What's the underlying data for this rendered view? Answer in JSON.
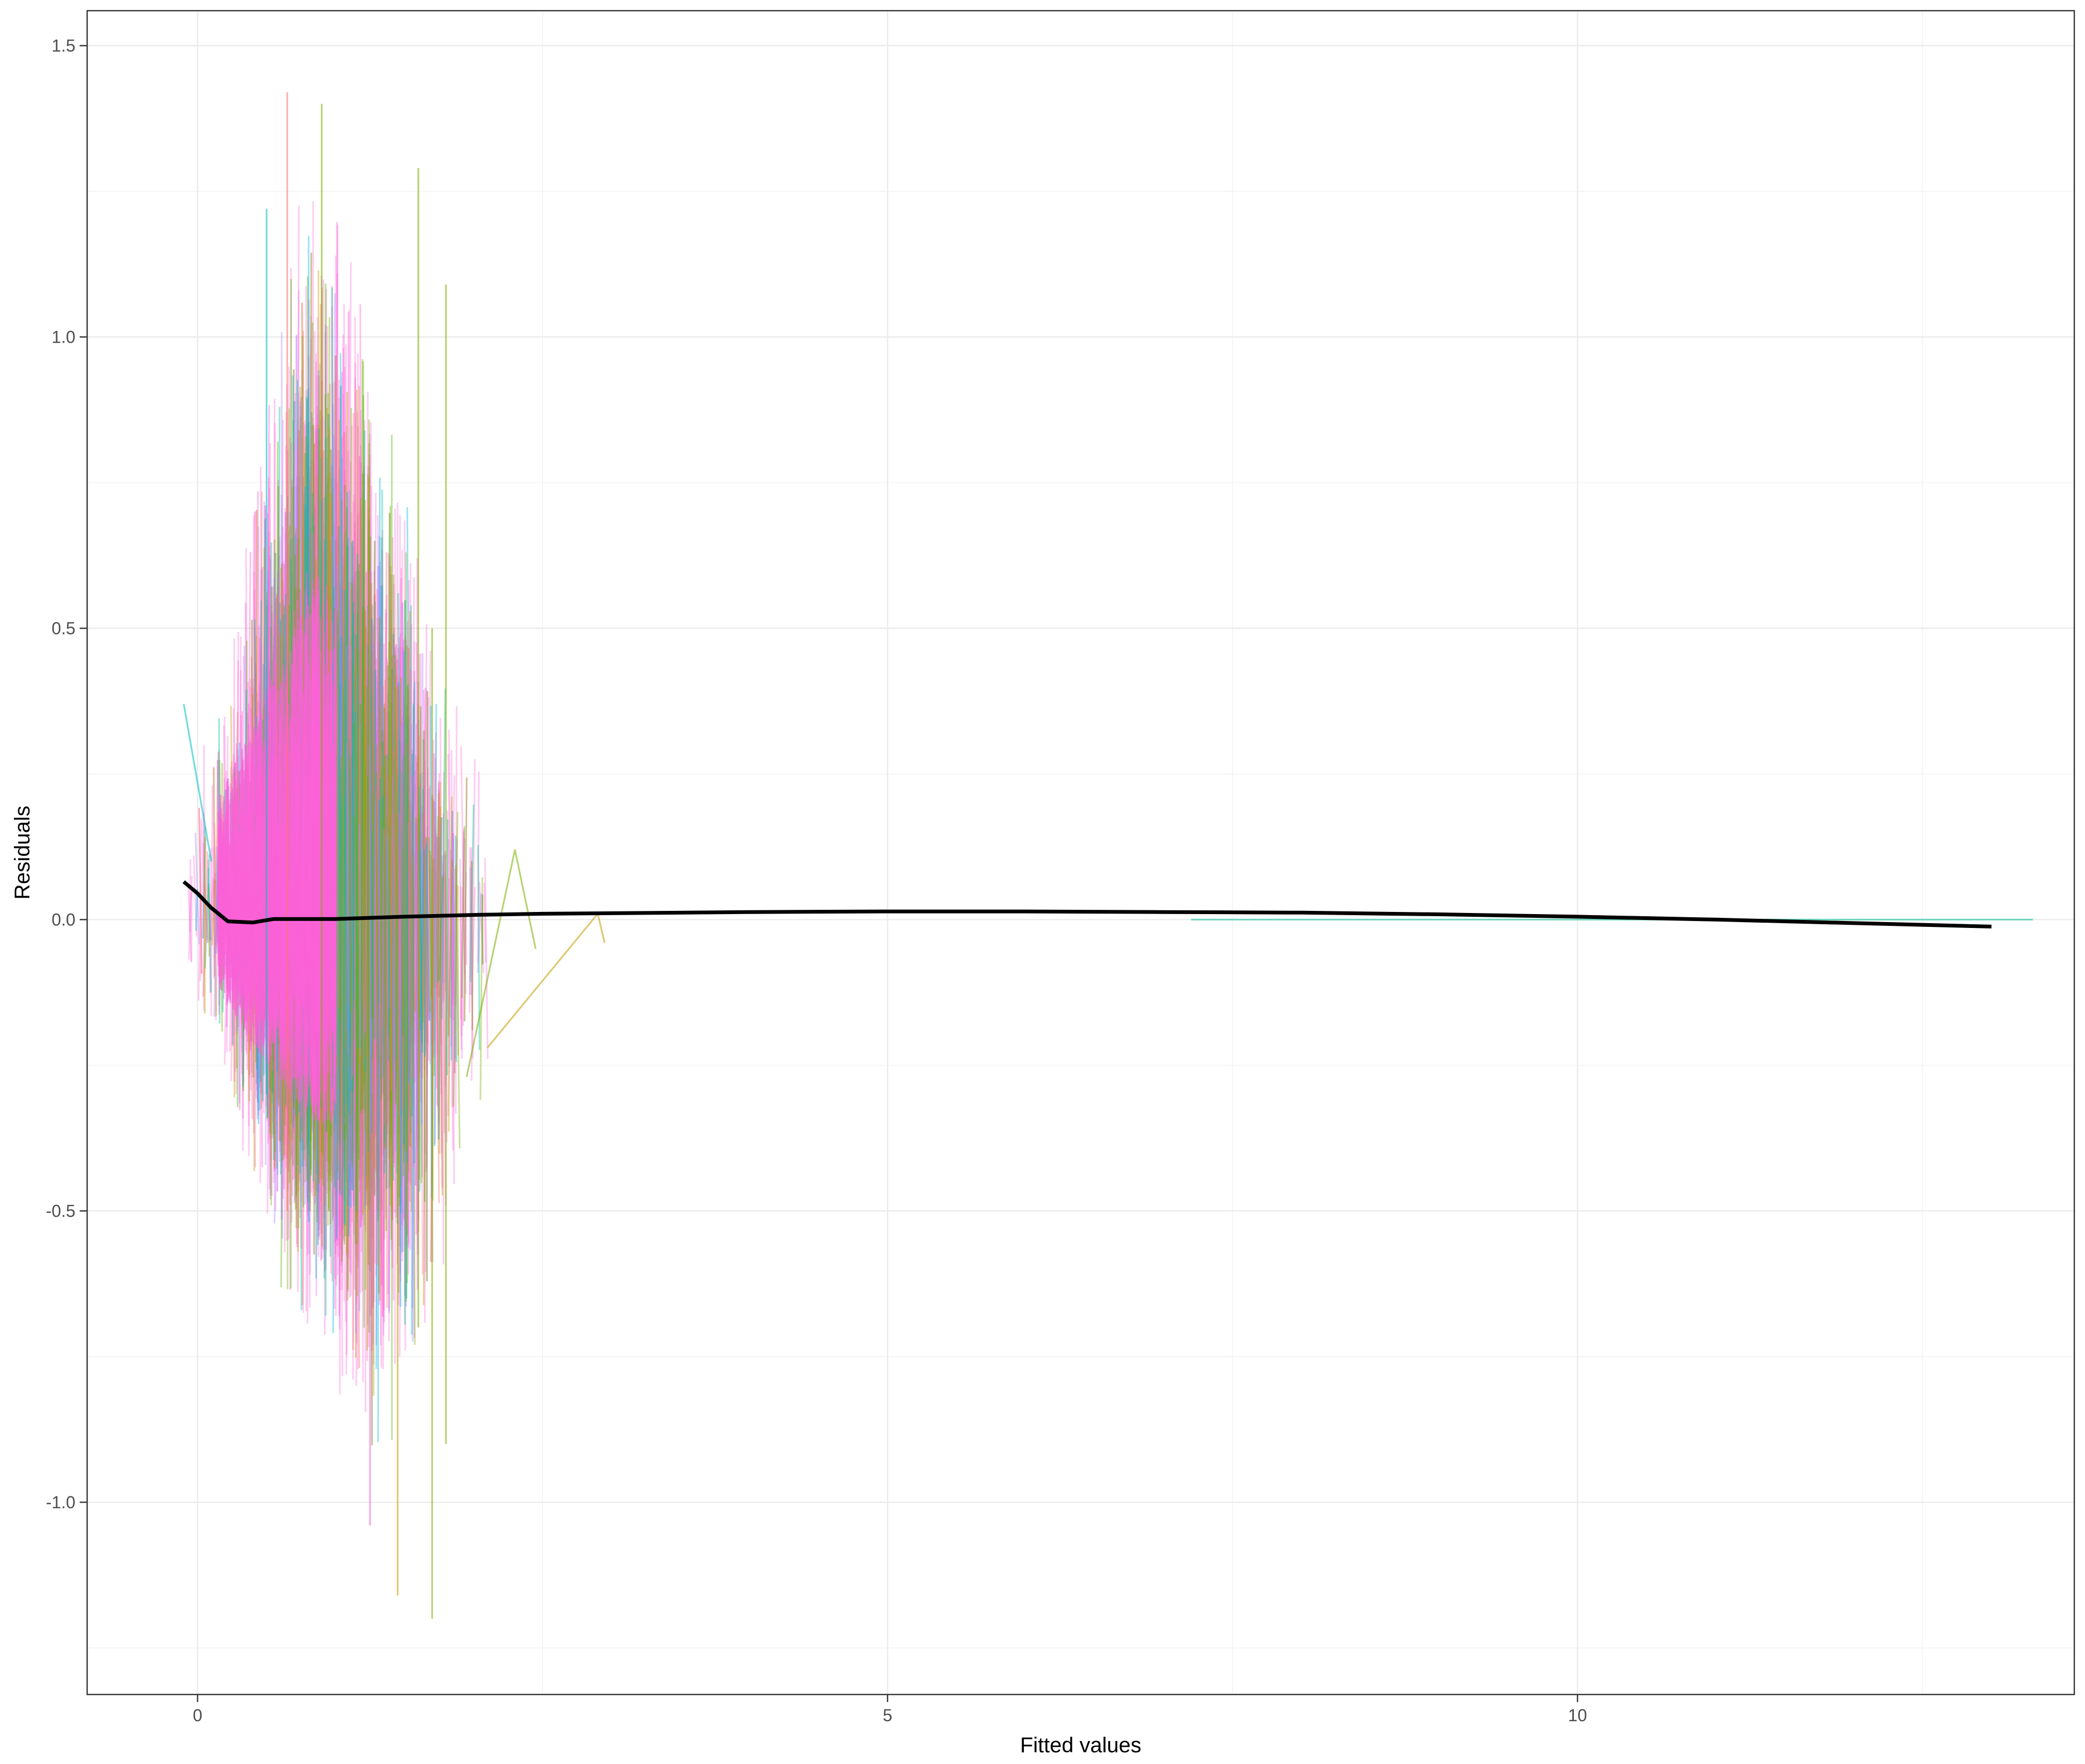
{
  "chart_data": {
    "type": "line",
    "title": "",
    "xlabel": "Fitted values",
    "ylabel": "Residuals",
    "xlim": [
      -0.8,
      13.6
    ],
    "ylim": [
      -1.33,
      1.56
    ],
    "x_ticks": [
      0,
      5,
      10
    ],
    "x_tick_labels": [
      "0",
      "5",
      "10"
    ],
    "y_ticks": [
      -1.0,
      -0.5,
      0.0,
      0.5,
      1.0,
      1.5
    ],
    "y_tick_labels": [
      "-1.0",
      "-0.5",
      "0.0",
      "0.5",
      "1.0",
      "1.5"
    ],
    "grid": true,
    "legend": "none",
    "background": "#ffffff",
    "group_colors": [
      "#F8766D",
      "#C49A00",
      "#7CAE00",
      "#53B400",
      "#00C094",
      "#00B6EB",
      "#A58AFF",
      "#FB61D7"
    ],
    "group_lines": {
      "description_visible": false,
      "x_range": [
        -0.1,
        2.5
      ],
      "envelope": [
        {
          "x": 0.0,
          "lo": -0.12,
          "hi": 0.27
        },
        {
          "x": 0.2,
          "lo": -0.3,
          "hi": 0.52
        },
        {
          "x": 0.4,
          "lo": -0.48,
          "hi": 0.75
        },
        {
          "x": 0.6,
          "lo": -0.62,
          "hi": 1.05
        },
        {
          "x": 0.8,
          "lo": -0.75,
          "hi": 1.35
        },
        {
          "x": 1.0,
          "lo": -0.82,
          "hi": 1.25
        },
        {
          "x": 1.2,
          "lo": -0.92,
          "hi": 1.05
        },
        {
          "x": 1.4,
          "lo": -0.95,
          "hi": 0.85
        },
        {
          "x": 1.6,
          "lo": -0.9,
          "hi": 0.68
        },
        {
          "x": 1.8,
          "lo": -0.65,
          "hi": 0.45
        },
        {
          "x": 2.0,
          "lo": -0.45,
          "hi": 0.3
        },
        {
          "x": 2.3,
          "lo": -0.3,
          "hi": 0.15
        }
      ],
      "sample_segments": [
        {
          "color": "#F8766D",
          "points": [
            [
              0.65,
              1.42
            ],
            [
              0.65,
              -0.5
            ]
          ]
        },
        {
          "color": "#7CAE00",
          "points": [
            [
              0.9,
              1.4
            ],
            [
              0.9,
              -0.4
            ]
          ]
        },
        {
          "color": "#00BFC4",
          "points": [
            [
              0.5,
              1.22
            ],
            [
              0.5,
              -0.3
            ]
          ]
        },
        {
          "color": "#7CAE00",
          "points": [
            [
              1.6,
              1.29
            ],
            [
              1.6,
              -0.7
            ]
          ]
        },
        {
          "color": "#C49A00",
          "points": [
            [
              1.45,
              -1.16
            ],
            [
              1.45,
              0.4
            ]
          ]
        },
        {
          "color": "#7CAE00",
          "points": [
            [
              1.7,
              -1.2
            ],
            [
              1.7,
              0.5
            ]
          ]
        },
        {
          "color": "#FB61D7",
          "points": [
            [
              1.25,
              -1.04
            ],
            [
              1.25,
              0.6
            ]
          ]
        },
        {
          "color": "#7CAE00",
          "points": [
            [
              1.8,
              -0.9
            ],
            [
              1.8,
              1.09
            ]
          ]
        },
        {
          "color": "#7CAE00",
          "points": [
            [
              1.95,
              -0.27
            ],
            [
              2.3,
              0.12
            ],
            [
              2.45,
              -0.05
            ]
          ]
        },
        {
          "color": "#C49A00",
          "points": [
            [
              2.1,
              -0.22
            ],
            [
              2.9,
              0.01
            ],
            [
              2.95,
              -0.04
            ]
          ]
        },
        {
          "color": "#00BFC4",
          "points": [
            [
              -0.1,
              0.37
            ],
            [
              0.1,
              0.1
            ]
          ]
        },
        {
          "color": "#00C094",
          "points": [
            [
              7.2,
              0.0
            ],
            [
              13.3,
              0.0
            ]
          ]
        }
      ]
    },
    "series": [
      {
        "color": "#000000",
        "x": [
          -0.1,
          0.0,
          0.1,
          0.22,
          0.4,
          0.55,
          0.8,
          1.0,
          1.5,
          2.0,
          2.5,
          3.0,
          4.0,
          5.0,
          6.0,
          7.0,
          8.0,
          9.0,
          10.0,
          11.0,
          12.0,
          13.0
        ],
        "y": [
          0.065,
          0.045,
          0.02,
          -0.003,
          -0.005,
          0.001,
          0.001,
          0.001,
          0.005,
          0.008,
          0.01,
          0.011,
          0.013,
          0.014,
          0.014,
          0.013,
          0.012,
          0.009,
          0.005,
          0.0,
          -0.006,
          -0.012
        ]
      }
    ]
  }
}
